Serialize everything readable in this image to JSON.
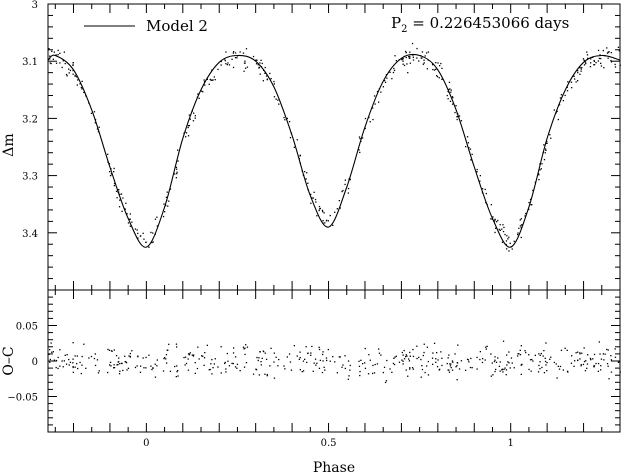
{
  "chart_data": [
    {
      "type": "scatter",
      "panel": "top",
      "ylabel": "Δm",
      "y_inverted": true,
      "xlim": [
        -0.27,
        1.3
      ],
      "ylim": [
        3.0,
        3.5
      ],
      "y_ticks": [
        3.0,
        3.1,
        3.2,
        3.3,
        3.4
      ],
      "y_tick_labels": [
        "3",
        "3.1",
        "3.2",
        "3.3",
        "3.4"
      ],
      "legend": {
        "placement": "top-left",
        "entries": [
          "Model 2"
        ]
      },
      "annotation": {
        "label": "P",
        "subscript": "2",
        "text": " = 0.226453066 days"
      },
      "model_curve": {
        "name": "Model 2",
        "x": [
          -0.27,
          -0.25,
          -0.2,
          -0.15,
          -0.1,
          -0.05,
          0.0,
          0.05,
          0.1,
          0.15,
          0.2,
          0.25,
          0.3,
          0.35,
          0.4,
          0.45,
          0.5,
          0.55,
          0.6,
          0.65,
          0.7,
          0.75,
          0.8,
          0.85,
          0.9,
          0.95,
          1.0,
          1.05,
          1.1,
          1.15,
          1.2,
          1.25,
          1.3
        ],
        "y": [
          3.098,
          3.09,
          3.115,
          3.185,
          3.285,
          3.375,
          3.425,
          3.355,
          3.235,
          3.15,
          3.102,
          3.09,
          3.1,
          3.145,
          3.23,
          3.335,
          3.39,
          3.32,
          3.215,
          3.135,
          3.095,
          3.09,
          3.115,
          3.185,
          3.285,
          3.375,
          3.425,
          3.355,
          3.235,
          3.15,
          3.102,
          3.09,
          3.098
        ]
      },
      "observed_points": "dense scatter of observations following the model curve"
    },
    {
      "type": "scatter",
      "panel": "bottom",
      "xlabel": "Phase",
      "ylabel": "O–C",
      "xlim": [
        -0.27,
        1.3
      ],
      "ylim": [
        -0.1,
        0.1
      ],
      "x_ticks": [
        0,
        0.5,
        1
      ],
      "x_tick_labels": [
        "0",
        "0.5",
        "1"
      ],
      "y_ticks": [
        0.05,
        0,
        -0.05
      ],
      "y_tick_labels": [
        "0.05",
        "0",
        "−0.05"
      ],
      "residual_spread": 0.06
    }
  ]
}
